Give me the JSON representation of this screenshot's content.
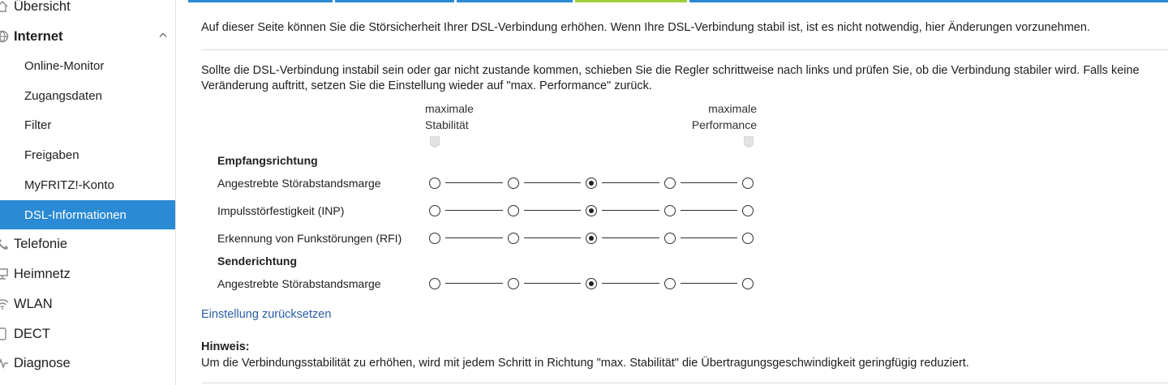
{
  "sidebar": {
    "items": [
      {
        "label": "Übersicht",
        "icon": "home-icon",
        "level": 1
      },
      {
        "label": "Internet",
        "icon": "globe-icon",
        "level": 1,
        "expanded": true
      },
      {
        "label": "Online-Monitor",
        "level": 2
      },
      {
        "label": "Zugangsdaten",
        "level": 2
      },
      {
        "label": "Filter",
        "level": 2
      },
      {
        "label": "Freigaben",
        "level": 2
      },
      {
        "label": "MyFRITZ!-Konto",
        "level": 2
      },
      {
        "label": "DSL-Informationen",
        "level": 2,
        "active": true
      },
      {
        "label": "Telefonie",
        "icon": "phone-icon",
        "level": 1
      },
      {
        "label": "Heimnetz",
        "icon": "network-icon",
        "level": 1
      },
      {
        "label": "WLAN",
        "icon": "wifi-icon",
        "level": 1
      },
      {
        "label": "DECT",
        "icon": "dect-icon",
        "level": 1
      },
      {
        "label": "Diagnose",
        "icon": "diagnose-icon",
        "level": 1
      }
    ]
  },
  "colors": {
    "accent": "#2a8ad4",
    "active_tab": "#9fcf3c",
    "link": "#2a5ea8"
  },
  "main": {
    "intro": "Auf dieser Seite können Sie die Störsicherheit Ihrer DSL-Verbindung erhöhen. Wenn Ihre DSL-Verbindung stabil ist, ist es nicht notwendig, hier Änderungen vorzunehmen.",
    "instruction_line1": "Sollte die DSL-Verbindung instabil sein oder gar nicht zustande kommen, schieben Sie die Regler schrittweise nach links und prüfen Sie, ob die Verbindung stabiler wird. Falls keine",
    "instruction_line2": "Veränderung auftritt, setzen Sie die Einstellung wieder auf \"max. Performance\" zurück.",
    "col_left": {
      "line1": "maximale",
      "line2": "Stabilität"
    },
    "col_right": {
      "line1": "maximale",
      "line2": "Performance"
    },
    "sections": [
      {
        "title": "Empfangsrichtung",
        "rows": [
          {
            "label": "Angestrebte Störabstandsmarge",
            "steps": 5,
            "selected": 2
          },
          {
            "label": "Impulsstörfestigkeit (INP)",
            "steps": 5,
            "selected": 2
          },
          {
            "label": "Erkennung von Funkstörungen (RFI)",
            "steps": 5,
            "selected": 2
          }
        ]
      },
      {
        "title": "Senderichtung",
        "rows": [
          {
            "label": "Angestrebte Störabstandsmarge",
            "steps": 5,
            "selected": 2
          }
        ]
      }
    ],
    "reset_link": "Einstellung zurücksetzen",
    "note_title": "Hinweis:",
    "note_text": "Um die Verbindungsstabilität zu erhöhen, wird mit jedem Schritt in Richtung \"max. Stabilität\" die Übertragungsgeschwindigkeit geringfügig reduziert."
  }
}
